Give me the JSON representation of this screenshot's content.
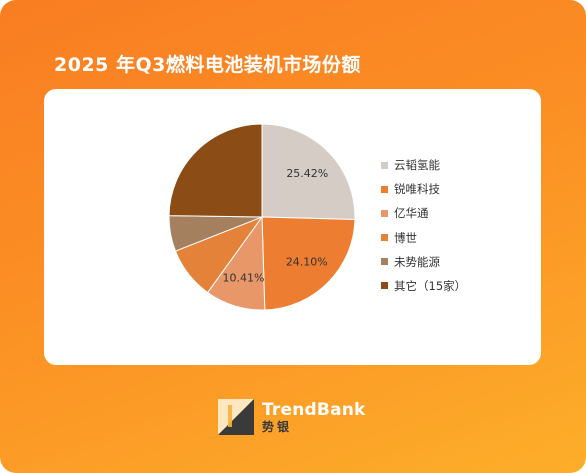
{
  "title": "2025 年Q3燃料电池装机市场份额",
  "chart_data": {
    "type": "pie",
    "title": "2025 年Q3燃料电池装机市场份额",
    "slices": [
      {
        "name": "云韬氢能",
        "value": 25.42,
        "color": "#d5ccc6",
        "label": "25.42%"
      },
      {
        "name": "锐唯科技",
        "value": 24.1,
        "color": "#ed7d31",
        "label": "24.10%"
      },
      {
        "name": "亿华通",
        "value": 10.41,
        "color": "#e89868",
        "label": "10.41%"
      },
      {
        "name": "博世",
        "value": 9.1,
        "color": "#e4823a",
        "label": ""
      },
      {
        "name": "未势能源",
        "value": 6.2,
        "color": "#a4805e",
        "label": ""
      },
      {
        "name": "其它（15家）",
        "value": 24.77,
        "color": "#8b4d15",
        "label": ""
      }
    ],
    "legend_position": "right"
  },
  "logo": {
    "name_en": "TrendBank",
    "name_cn": "势银"
  }
}
